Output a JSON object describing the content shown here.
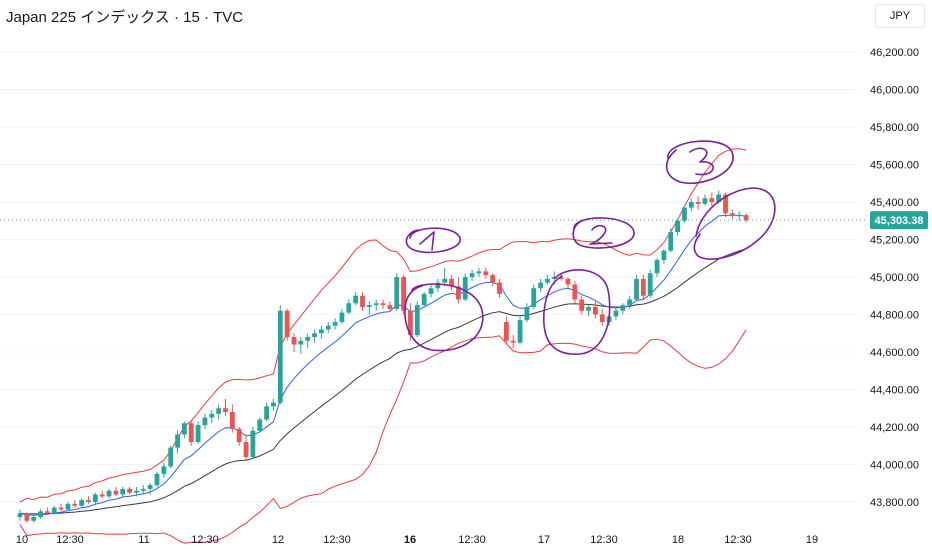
{
  "header": {
    "title": "Japan 225 インデックス · 15 · TVC",
    "currency": "JPY"
  },
  "price_label": {
    "text": "45,303.38",
    "color": "#26a69a"
  },
  "colors": {
    "up": "#26a69a",
    "down": "#ef5350",
    "bb": "#ef3b3b",
    "ema_fast": "#2962ff",
    "ema_slow": "#363a45",
    "annotation": "#7b1fa2"
  },
  "annotations": [
    {
      "label": "1"
    },
    {
      "label": "2"
    },
    {
      "label": "3"
    }
  ],
  "chart_data": {
    "type": "candlestick",
    "title": "Japan 225 インデックス · 15 · TVC",
    "ylim": [
      43700,
      46300
    ],
    "y_ticks": [
      43800,
      44000,
      44200,
      44400,
      44600,
      44800,
      45000,
      45200,
      45400,
      45600,
      45800,
      46000,
      46200
    ],
    "y_tick_labels": [
      "43,800.00",
      "44,000.00",
      "44,200.00",
      "44,400.00",
      "44,600.00",
      "44,800.00",
      "45,000.00",
      "45,200.00",
      "45,400.00",
      "45,600.00",
      "45,800.00",
      "46,000.00",
      "46,200.00"
    ],
    "x_ticks": [
      {
        "label": "10",
        "bold": false
      },
      {
        "label": "12:30",
        "bold": false
      },
      {
        "label": "11",
        "bold": false
      },
      {
        "label": "12:30",
        "bold": false
      },
      {
        "label": "12",
        "bold": false
      },
      {
        "label": "12:30",
        "bold": false
      },
      {
        "label": "16",
        "bold": true
      },
      {
        "label": "12:30",
        "bold": false
      },
      {
        "label": "17",
        "bold": false
      },
      {
        "label": "12:30",
        "bold": false
      },
      {
        "label": "18",
        "bold": false
      },
      {
        "label": "12:30",
        "bold": false
      },
      {
        "label": "19",
        "bold": false
      }
    ],
    "last_price": 45303.38,
    "candles": [
      [
        43720,
        43760,
        43700,
        43740
      ],
      [
        43740,
        43745,
        43690,
        43700
      ],
      [
        43700,
        43730,
        43690,
        43720
      ],
      [
        43720,
        43760,
        43710,
        43750
      ],
      [
        43750,
        43770,
        43730,
        43740
      ],
      [
        43740,
        43780,
        43730,
        43770
      ],
      [
        43770,
        43790,
        43750,
        43760
      ],
      [
        43760,
        43800,
        43750,
        43790
      ],
      [
        43790,
        43810,
        43770,
        43780
      ],
      [
        43780,
        43820,
        43770,
        43810
      ],
      [
        43810,
        43830,
        43790,
        43800
      ],
      [
        43800,
        43850,
        43790,
        43840
      ],
      [
        43840,
        43860,
        43820,
        43830
      ],
      [
        43830,
        43870,
        43820,
        43860
      ],
      [
        43860,
        43880,
        43830,
        43840
      ],
      [
        43840,
        43880,
        43830,
        43870
      ],
      [
        43870,
        43880,
        43840,
        43850
      ],
      [
        43850,
        43880,
        43830,
        43860
      ],
      [
        43860,
        43890,
        43840,
        43870
      ],
      [
        43870,
        43900,
        43840,
        43890
      ],
      [
        43890,
        43960,
        43880,
        43950
      ],
      [
        43950,
        44010,
        43930,
        43990
      ],
      [
        43990,
        44100,
        43980,
        44090
      ],
      [
        44090,
        44180,
        44060,
        44160
      ],
      [
        44160,
        44230,
        44140,
        44220
      ],
      [
        44220,
        44230,
        44100,
        44120
      ],
      [
        44120,
        44230,
        44110,
        44210
      ],
      [
        44210,
        44270,
        44190,
        44250
      ],
      [
        44250,
        44290,
        44220,
        44270
      ],
      [
        44270,
        44320,
        44240,
        44300
      ],
      [
        44300,
        44350,
        44260,
        44280
      ],
      [
        44280,
        44320,
        44170,
        44190
      ],
      [
        44190,
        44200,
        44100,
        44120
      ],
      [
        44120,
        44160,
        44020,
        44040
      ],
      [
        44040,
        44200,
        44030,
        44180
      ],
      [
        44180,
        44250,
        44170,
        44240
      ],
      [
        44240,
        44330,
        44230,
        44310
      ],
      [
        44310,
        44350,
        44290,
        44330
      ],
      [
        44330,
        44850,
        44320,
        44820
      ],
      [
        44820,
        44830,
        44660,
        44680
      ],
      [
        44680,
        44700,
        44600,
        44640
      ],
      [
        44640,
        44680,
        44590,
        44660
      ],
      [
        44660,
        44700,
        44620,
        44680
      ],
      [
        44680,
        44720,
        44650,
        44700
      ],
      [
        44700,
        44740,
        44670,
        44720
      ],
      [
        44720,
        44760,
        44700,
        44740
      ],
      [
        44740,
        44780,
        44720,
        44760
      ],
      [
        44760,
        44830,
        44750,
        44810
      ],
      [
        44810,
        44880,
        44800,
        44860
      ],
      [
        44860,
        44920,
        44850,
        44900
      ],
      [
        44900,
        44920,
        44820,
        44840
      ],
      [
        44840,
        44870,
        44800,
        44850
      ],
      [
        44850,
        44880,
        44820,
        44860
      ],
      [
        44860,
        44880,
        44830,
        44850
      ],
      [
        44850,
        44870,
        44820,
        44830
      ],
      [
        44830,
        45020,
        44820,
        45000
      ],
      [
        45000,
        45010,
        44800,
        44820
      ],
      [
        44820,
        44860,
        44660,
        44690
      ],
      [
        44690,
        44870,
        44680,
        44850
      ],
      [
        44850,
        44920,
        44840,
        44910
      ],
      [
        44910,
        44960,
        44890,
        44940
      ],
      [
        44940,
        44990,
        44920,
        44970
      ],
      [
        44970,
        45050,
        44950,
        44990
      ],
      [
        44990,
        45010,
        44930,
        44950
      ],
      [
        44950,
        45000,
        44860,
        44880
      ],
      [
        44880,
        45020,
        44870,
        45000
      ],
      [
        45000,
        45040,
        44980,
        45020
      ],
      [
        45020,
        45050,
        45000,
        45030
      ],
      [
        45030,
        45050,
        44990,
        45010
      ],
      [
        45010,
        45020,
        44950,
        44970
      ],
      [
        44970,
        44990,
        44890,
        44910
      ],
      [
        44760,
        44790,
        44640,
        44660
      ],
      [
        44660,
        44690,
        44620,
        44650
      ],
      [
        44650,
        44790,
        44640,
        44770
      ],
      [
        44770,
        44860,
        44760,
        44840
      ],
      [
        44840,
        44960,
        44830,
        44940
      ],
      [
        44940,
        44990,
        44920,
        44970
      ],
      [
        44970,
        45010,
        44960,
        44990
      ],
      [
        44990,
        45030,
        44960,
        45000
      ],
      [
        45000,
        45020,
        44980,
        44990
      ],
      [
        44990,
        45000,
        44940,
        44960
      ],
      [
        44960,
        44980,
        44860,
        44880
      ],
      [
        44880,
        44900,
        44800,
        44820
      ],
      [
        44820,
        44850,
        44790,
        44840
      ],
      [
        44840,
        44870,
        44780,
        44800
      ],
      [
        44800,
        44830,
        44740,
        44760
      ],
      [
        44760,
        44800,
        44740,
        44790
      ],
      [
        44790,
        44840,
        44770,
        44820
      ],
      [
        44820,
        44860,
        44800,
        44850
      ],
      [
        44850,
        44900,
        44830,
        44880
      ],
      [
        44880,
        45010,
        44870,
        44990
      ],
      [
        44990,
        45010,
        44880,
        44900
      ],
      [
        44900,
        45040,
        44890,
        45020
      ],
      [
        45020,
        45100,
        45000,
        45090
      ],
      [
        45090,
        45150,
        45070,
        45140
      ],
      [
        45140,
        45260,
        45130,
        45240
      ],
      [
        45240,
        45310,
        45220,
        45300
      ],
      [
        45300,
        45380,
        45290,
        45370
      ],
      [
        45370,
        45420,
        45350,
        45400
      ],
      [
        45400,
        45430,
        45360,
        45390
      ],
      [
        45390,
        45440,
        45380,
        45420
      ],
      [
        45420,
        45450,
        45380,
        45400
      ],
      [
        45400,
        45460,
        45390,
        45440
      ],
      [
        45440,
        45450,
        45320,
        45340
      ],
      [
        45340,
        45360,
        45310,
        45330
      ],
      [
        45330,
        45350,
        45300,
        45330
      ],
      [
        45330,
        45340,
        45290,
        45303
      ]
    ]
  }
}
